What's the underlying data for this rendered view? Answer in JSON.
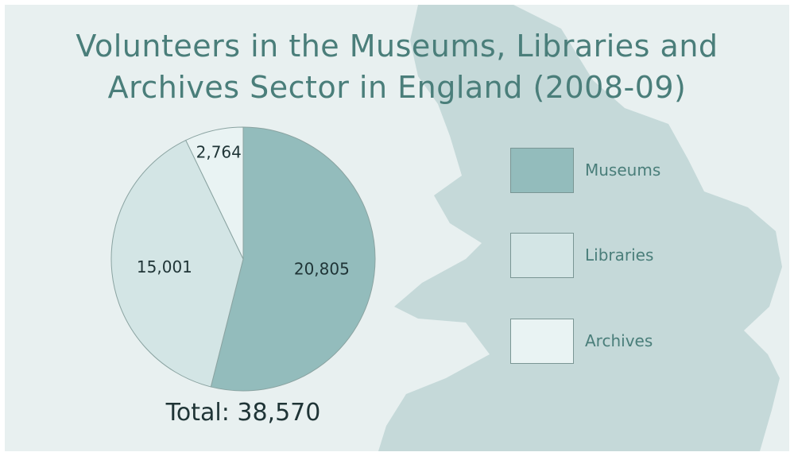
{
  "title": {
    "line1": "Volunteers in the Museums, Libraries and",
    "line2": "Archives Sector in England (2008-09)"
  },
  "total_label": "Total: 38,570",
  "colors": {
    "background": "#e8f0f0",
    "map": "#c5d9d9",
    "museums": "#93bcbc",
    "libraries": "#d3e5e5",
    "archives": "#e9f3f3",
    "title_text": "#4a7e7a",
    "slice_stroke": "#8aa3a1"
  },
  "chart_data": {
    "type": "pie",
    "title": "Volunteers in the Museums, Libraries and Archives Sector in England (2008-09)",
    "slices": [
      {
        "name": "Museums",
        "value": 20805,
        "label": "20,805",
        "color": "#93bcbc"
      },
      {
        "name": "Libraries",
        "value": 15001,
        "label": "15,001",
        "color": "#d3e5e5"
      },
      {
        "name": "Archives",
        "value": 2764,
        "label": "2,764",
        "color": "#e9f3f3"
      }
    ],
    "total": 38570,
    "legend_position": "right"
  }
}
